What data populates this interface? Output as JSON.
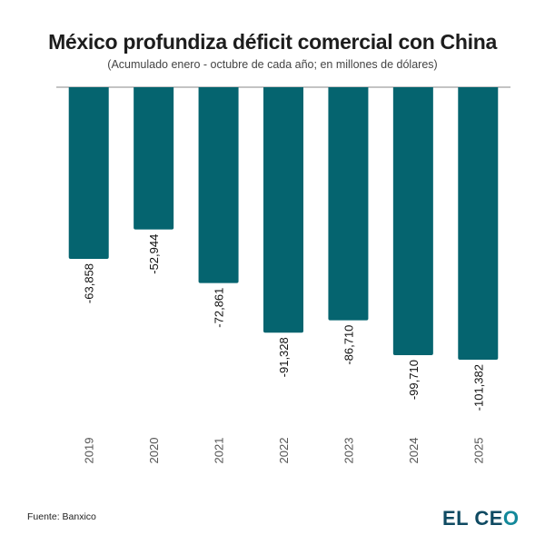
{
  "chart_data": {
    "type": "bar",
    "title": "México profundiza déficit comercial con China",
    "subtitle": "(Acumulado enero - octubre de cada año; en millones de dólares)",
    "categories": [
      "2019",
      "2020",
      "2021",
      "2022",
      "2023",
      "2024",
      "2025"
    ],
    "values": [
      -63858,
      -52944,
      -72861,
      -91328,
      -86710,
      -99710,
      -101382
    ],
    "labels": [
      "-63,858",
      "-52,944",
      "-72,861",
      "-91,328",
      "-86,710",
      "-99,710",
      "-101,382"
    ],
    "xlabel": "",
    "ylabel": "",
    "ylim": [
      -101382,
      0
    ],
    "grid": false,
    "legend": "none",
    "bar_color": "#05646f",
    "baseline_color": "#888888"
  },
  "footer": {
    "source": "Fuente: Banxico",
    "logo_main": "EL CE",
    "logo_o": "O"
  }
}
